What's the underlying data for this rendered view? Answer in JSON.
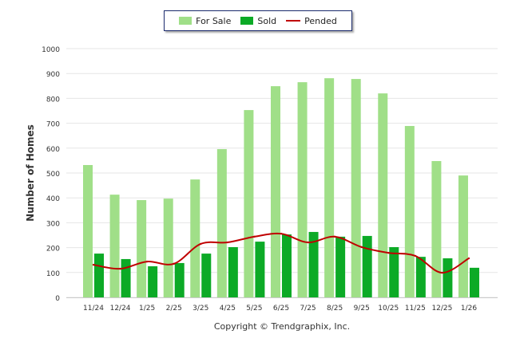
{
  "chart_data": {
    "type": "bar",
    "title": "",
    "xlabel": "",
    "ylabel": "Number of Homes",
    "ylim": [
      0,
      1000
    ],
    "yticks": [
      0,
      100,
      200,
      300,
      400,
      500,
      600,
      700,
      800,
      900,
      1000
    ],
    "grid": true,
    "legend_position": "top-center",
    "categories": [
      "11/24",
      "12/24",
      "1/25",
      "2/25",
      "3/25",
      "4/25",
      "5/25",
      "6/25",
      "7/25",
      "8/25",
      "9/25",
      "10/25",
      "11/25",
      "12/25",
      "1/26"
    ],
    "series": [
      {
        "name": "For Sale",
        "type": "bar",
        "color": "#a0df88",
        "values": [
          532,
          413,
          391,
          397,
          474,
          596,
          753,
          849,
          865,
          881,
          878,
          820,
          689,
          548,
          490
        ]
      },
      {
        "name": "Sold",
        "type": "bar",
        "color": "#0caa26",
        "values": [
          176,
          154,
          125,
          138,
          176,
          202,
          224,
          253,
          263,
          244,
          247,
          202,
          163,
          157,
          119
        ]
      },
      {
        "name": "Pended",
        "type": "line",
        "color": "#c00000",
        "values": [
          131,
          115,
          144,
          135,
          215,
          221,
          244,
          256,
          221,
          244,
          202,
          179,
          167,
          99,
          157
        ]
      }
    ],
    "footer": "Copyright © Trendgraphix, Inc."
  }
}
